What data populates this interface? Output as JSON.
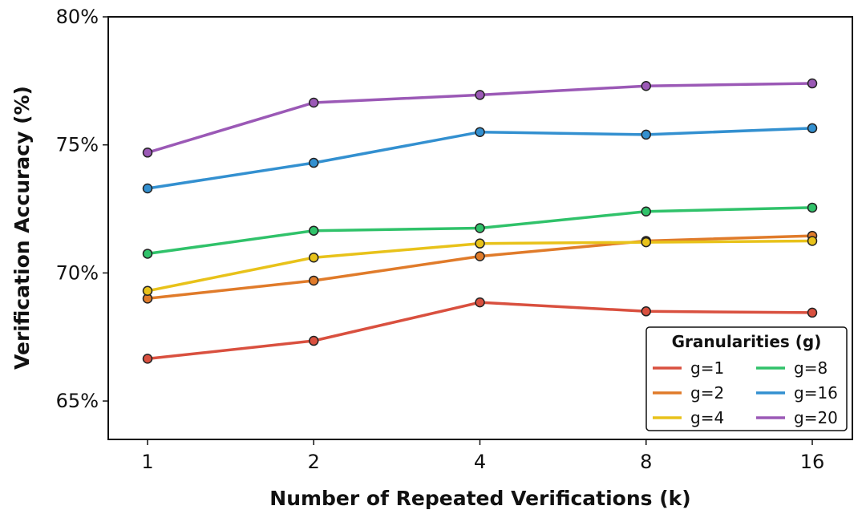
{
  "chart_data": {
    "type": "line",
    "xlabel": "Number of Repeated Verifications (k)",
    "ylabel": "Verification Accuracy (%)",
    "x": [
      1,
      2,
      4,
      8,
      16
    ],
    "x_tick_labels": [
      "1",
      "2",
      "4",
      "8",
      "16"
    ],
    "x_scale": "log2",
    "ylim": [
      63.5,
      80
    ],
    "y_ticks": [
      65,
      70,
      75,
      80
    ],
    "y_tick_labels": [
      "65%",
      "70%",
      "75%",
      "80%"
    ],
    "grid": false,
    "legend": {
      "title": "Granularities (g)",
      "placement": "lower-right",
      "columns": 2
    },
    "series": [
      {
        "name": "g=1",
        "color": "#d9503f",
        "values": [
          66.65,
          67.35,
          68.85,
          68.5,
          68.45
        ]
      },
      {
        "name": "g=2",
        "color": "#e07b2a",
        "values": [
          69.0,
          69.7,
          70.65,
          71.25,
          71.45
        ]
      },
      {
        "name": "g=4",
        "color": "#e8c21a",
        "values": [
          69.3,
          70.6,
          71.15,
          71.2,
          71.25
        ]
      },
      {
        "name": "g=8",
        "color": "#30c26a",
        "values": [
          70.75,
          71.65,
          71.75,
          72.4,
          72.55
        ]
      },
      {
        "name": "g=16",
        "color": "#3390d0",
        "values": [
          73.3,
          74.3,
          75.5,
          75.4,
          75.65
        ]
      },
      {
        "name": "g=20",
        "color": "#9b59b6",
        "values": [
          74.7,
          76.65,
          76.95,
          77.3,
          77.4
        ]
      }
    ]
  }
}
